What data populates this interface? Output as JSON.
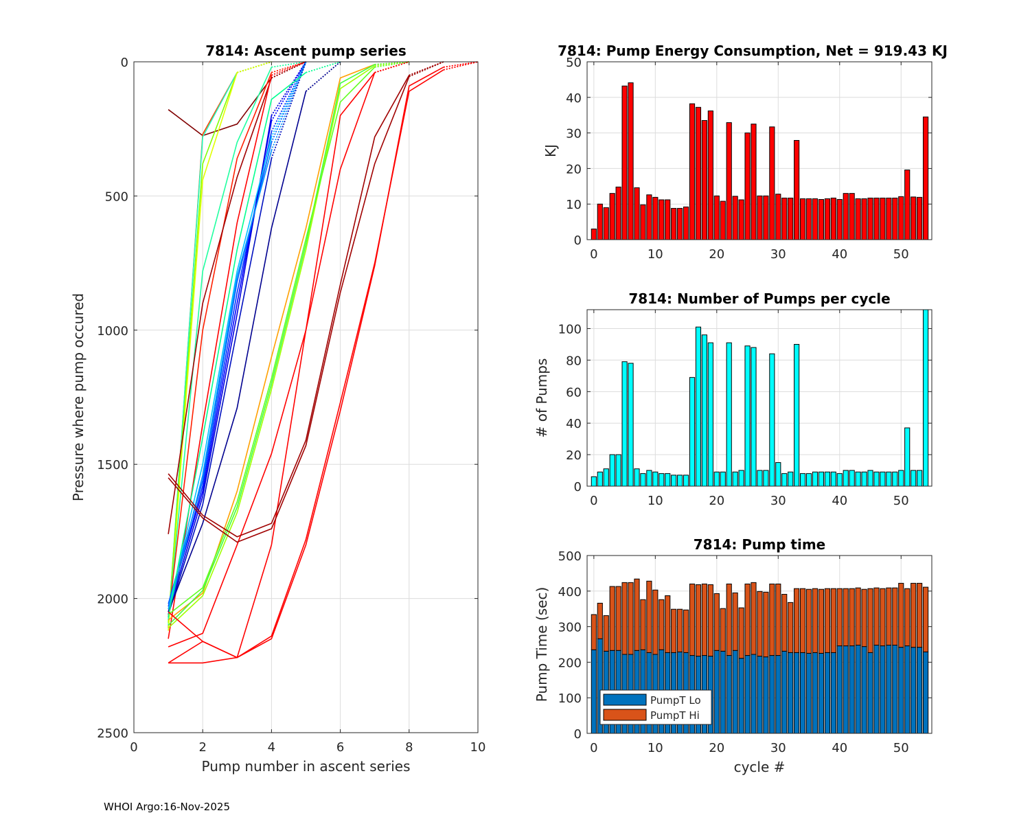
{
  "footer": "WHOI Argo:16-Nov-2025",
  "chart_data": [
    {
      "type": "line",
      "title": "7814: Ascent pump series",
      "xlabel": "Pump number in ascent series",
      "ylabel": "Pressure where pump occured",
      "xlim": [
        0,
        10
      ],
      "ylim": [
        0,
        2500
      ],
      "y_reversed": true,
      "xticks": [
        "0",
        "2",
        "4",
        "6",
        "8",
        "10"
      ],
      "yticks": [
        "0",
        "500",
        "1000",
        "1500",
        "2000",
        "2500"
      ],
      "grid": true,
      "note": "final segment to surface drawn dotted",
      "series": [
        {
          "color": "#800000",
          "y": [
            178,
            275,
            232,
            60,
            0
          ]
        },
        {
          "color": "#ff4000",
          "y": [
            2110,
            270,
            40,
            0
          ]
        },
        {
          "color": "#20ffc0",
          "y": [
            2100,
            280,
            40,
            0
          ]
        },
        {
          "color": "#80ff00",
          "y": [
            2090,
            380,
            40,
            0
          ]
        },
        {
          "color": "#e0ff00",
          "y": [
            2120,
            440,
            40,
            0
          ]
        },
        {
          "color": "#20ffa0",
          "y": [
            2080,
            780,
            300,
            20,
            0
          ]
        },
        {
          "color": "#ff2000",
          "y": [
            2070,
            1000,
            360,
            40,
            0
          ]
        },
        {
          "color": "#a00000",
          "y": [
            1760,
            900,
            430,
            60,
            0
          ]
        },
        {
          "color": "#ff0000",
          "y": [
            2150,
            1350,
            600,
            50,
            0
          ]
        },
        {
          "color": "#0000ff",
          "y": [
            2030,
            1600,
            900,
            220,
            0
          ]
        },
        {
          "color": "#0030ff",
          "y": [
            2040,
            1580,
            860,
            260,
            0
          ]
        },
        {
          "color": "#0060ff",
          "y": [
            2020,
            1560,
            820,
            300,
            0
          ]
        },
        {
          "color": "#0000e0",
          "y": [
            2050,
            1620,
            940,
            200,
            0
          ]
        },
        {
          "color": "#0090ff",
          "y": [
            2060,
            1540,
            800,
            330,
            0
          ]
        },
        {
          "color": "#00c0ff",
          "y": [
            2040,
            1500,
            780,
            280,
            0
          ]
        },
        {
          "color": "#0010c0",
          "y": [
            2060,
            1650,
            1000,
            360,
            0
          ]
        },
        {
          "color": "#00008f",
          "y": [
            2050,
            1720,
            1290,
            620,
            110,
            0
          ]
        },
        {
          "color": "#00ff90",
          "y": [
            2070,
            1400,
            700,
            140,
            40,
            0
          ]
        },
        {
          "color": "#ffa000",
          "y": [
            2080,
            1980,
            1600,
            1100,
            620,
            60,
            10,
            0
          ]
        },
        {
          "color": "#40ff40",
          "y": [
            2100,
            1970,
            1660,
            1200,
            680,
            80,
            10,
            0
          ]
        },
        {
          "color": "#a0ff00",
          "y": [
            2110,
            1990,
            1680,
            1220,
            700,
            100,
            15,
            0
          ]
        },
        {
          "color": "#60ff20",
          "y": [
            2060,
            1960,
            1640,
            1180,
            660,
            150,
            20,
            0
          ]
        },
        {
          "color": "#ff0000",
          "y": [
            2180,
            2130,
            1800,
            1460,
            1000,
            400,
            40,
            0
          ]
        },
        {
          "color": "#ff0000",
          "y": [
            2240,
            2240,
            2220,
            1800,
            1000,
            200,
            40,
            0
          ]
        },
        {
          "color": "#a00000",
          "y": [
            1535,
            1690,
            1770,
            1720,
            1410,
            830,
            280,
            50,
            0
          ]
        },
        {
          "color": "#a00000",
          "y": [
            1550,
            1700,
            1790,
            1740,
            1430,
            860,
            380,
            55,
            0
          ]
        },
        {
          "color": "#ff0000",
          "y": [
            2240,
            2160,
            2220,
            2140,
            1780,
            1270,
            750,
            110,
            30,
            0
          ]
        },
        {
          "color": "#ff0000",
          "y": [
            2050,
            2160,
            2220,
            2150,
            1800,
            1300,
            760,
            90,
            20,
            0
          ]
        }
      ]
    },
    {
      "type": "bar",
      "title": "7814: Pump Energy Consumption,  Net = 919.43 KJ",
      "xlabel": "",
      "ylabel": "KJ",
      "xlim": [
        -1.1,
        55
      ],
      "ylim": [
        0,
        50
      ],
      "xticks": [
        "0",
        "10",
        "20",
        "30",
        "40",
        "50"
      ],
      "yticks": [
        "0",
        "10",
        "20",
        "30",
        "40",
        "50"
      ],
      "grid": true,
      "color": "#ff0000",
      "x": [
        0,
        1,
        2,
        3,
        4,
        5,
        6,
        7,
        8,
        9,
        10,
        11,
        12,
        13,
        14,
        15,
        16,
        17,
        18,
        19,
        20,
        21,
        22,
        23,
        24,
        25,
        26,
        27,
        28,
        29,
        30,
        31,
        32,
        33,
        34,
        35,
        36,
        37,
        38,
        39,
        40,
        41,
        42,
        43,
        44,
        45,
        46,
        47,
        48,
        49,
        50,
        51,
        52,
        53,
        54
      ],
      "values": [
        3,
        10,
        9,
        13,
        14.8,
        43.2,
        44.1,
        14.6,
        9.8,
        12.6,
        11.9,
        11.2,
        11.2,
        8.8,
        8.8,
        9.2,
        38.2,
        37.2,
        33.5,
        36.2,
        12.3,
        10.8,
        32.9,
        12.2,
        11.2,
        30,
        32.5,
        12.3,
        12.3,
        31.7,
        12.8,
        11.7,
        11.7,
        27.9,
        11.5,
        11.5,
        11.5,
        11.3,
        11.5,
        11.7,
        11.3,
        13,
        13,
        11.5,
        11.5,
        11.7,
        11.7,
        11.7,
        11.7,
        11.7,
        12.1,
        19.6,
        12,
        11.9,
        34.5
      ]
    },
    {
      "type": "bar",
      "title": "7814: Number of Pumps per cycle",
      "xlabel": "",
      "ylabel": "# of Pumps",
      "xlim": [
        -1.1,
        55
      ],
      "ylim": [
        0,
        112
      ],
      "xticks": [
        "0",
        "10",
        "20",
        "30",
        "40",
        "50"
      ],
      "yticks": [
        "0",
        "20",
        "40",
        "60",
        "80",
        "100"
      ],
      "grid": true,
      "color": "#00ffff",
      "values": [
        6,
        9,
        11,
        20,
        20,
        79,
        78,
        11,
        8,
        10,
        9,
        8,
        8,
        7,
        7,
        7,
        69,
        101,
        96,
        91,
        9,
        9,
        91,
        9,
        10,
        89,
        88,
        10,
        10,
        84,
        15,
        8,
        9,
        90,
        8,
        8,
        9,
        9,
        9,
        9,
        8,
        10,
        10,
        9,
        9,
        10,
        9,
        9,
        9,
        9,
        10,
        37,
        10,
        10,
        112
      ]
    },
    {
      "type": "bar",
      "stacked": true,
      "title": "7814: Pump time",
      "xlabel": "cycle #",
      "ylabel": "Pump Time (sec)",
      "xlim": [
        -1.1,
        55
      ],
      "ylim": [
        0,
        500
      ],
      "xticks": [
        "0",
        "10",
        "20",
        "30",
        "40",
        "50"
      ],
      "yticks": [
        "0",
        "100",
        "200",
        "300",
        "400",
        "500"
      ],
      "grid": true,
      "legend_position": "bottom-left",
      "series": [
        {
          "name": "PumpT Lo",
          "color": "#0072bd",
          "values": [
            235,
            266,
            231,
            233,
            233,
            222,
            222,
            233,
            235,
            227,
            222,
            235,
            227,
            227,
            229,
            227,
            219,
            217,
            219,
            217,
            233,
            231,
            219,
            233,
            211,
            219,
            222,
            217,
            215,
            219,
            219,
            231,
            227,
            227,
            227,
            225,
            227,
            225,
            227,
            227,
            246,
            246,
            246,
            248,
            244,
            227,
            248,
            246,
            248,
            248,
            242,
            246,
            242,
            242,
            229
          ]
        },
        {
          "name": "PumpT Hi",
          "color": "#d95319",
          "values": [
            99,
            100,
            100,
            180,
            180,
            202,
            202,
            201,
            141,
            201,
            181,
            141,
            160,
            122,
            120,
            120,
            201,
            201,
            201,
            201,
            160,
            120,
            201,
            162,
            142,
            201,
            202,
            182,
            182,
            201,
            201,
            160,
            141,
            180,
            180,
            180,
            180,
            180,
            180,
            180,
            161,
            161,
            161,
            161,
            161,
            180,
            161,
            161,
            161,
            161,
            180,
            161,
            180,
            180,
            182
          ]
        }
      ]
    }
  ]
}
